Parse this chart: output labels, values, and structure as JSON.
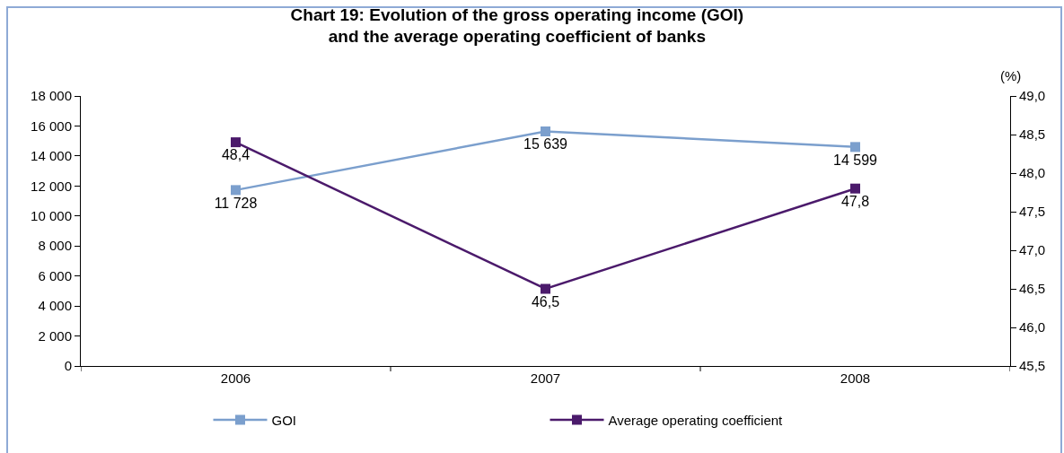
{
  "chart_data": {
    "type": "line",
    "title": "Chart 19: Evolution of the gross operating income (GOI)\nand the average operating coefficient of banks",
    "y2label": "(%)",
    "categories": [
      "2006",
      "2007",
      "2008"
    ],
    "series": [
      {
        "name": "GOI",
        "color": "#7b9fcd",
        "values": [
          11728,
          15639,
          14599
        ],
        "value_labels": [
          "11 728",
          "15 639",
          "14 599"
        ]
      },
      {
        "name": "Average operating coefficient",
        "color": "#4b1a6b",
        "values": [
          48.4,
          46.5,
          47.8
        ],
        "axis": "y2",
        "value_labels": [
          "48,4",
          "46,5",
          "47,8"
        ]
      }
    ],
    "ylim": [
      0,
      18000
    ],
    "yticks": [
      {
        "value": 0,
        "label": "0"
      },
      {
        "value": 2000,
        "label": "2 000"
      },
      {
        "value": 4000,
        "label": "4 000"
      },
      {
        "value": 6000,
        "label": "6 000"
      },
      {
        "value": 8000,
        "label": "8 000"
      },
      {
        "value": 10000,
        "label": "10 000"
      },
      {
        "value": 12000,
        "label": "12 000"
      },
      {
        "value": 14000,
        "label": "14 000"
      },
      {
        "value": 16000,
        "label": "16 000"
      },
      {
        "value": 18000,
        "label": "18 000"
      }
    ],
    "y2lim": [
      45.5,
      49.0
    ],
    "y2ticks": [
      {
        "value": 45.5,
        "label": "45,5"
      },
      {
        "value": 46.0,
        "label": "46,0"
      },
      {
        "value": 46.5,
        "label": "46,5"
      },
      {
        "value": 47.0,
        "label": "47,0"
      },
      {
        "value": 47.5,
        "label": "47,5"
      },
      {
        "value": 48.0,
        "label": "48,0"
      },
      {
        "value": 48.5,
        "label": "48,5"
      },
      {
        "value": 49.0,
        "label": "49,0"
      }
    ],
    "marker": "square",
    "line_style": "solid",
    "grid": false,
    "legend": "bottom"
  }
}
